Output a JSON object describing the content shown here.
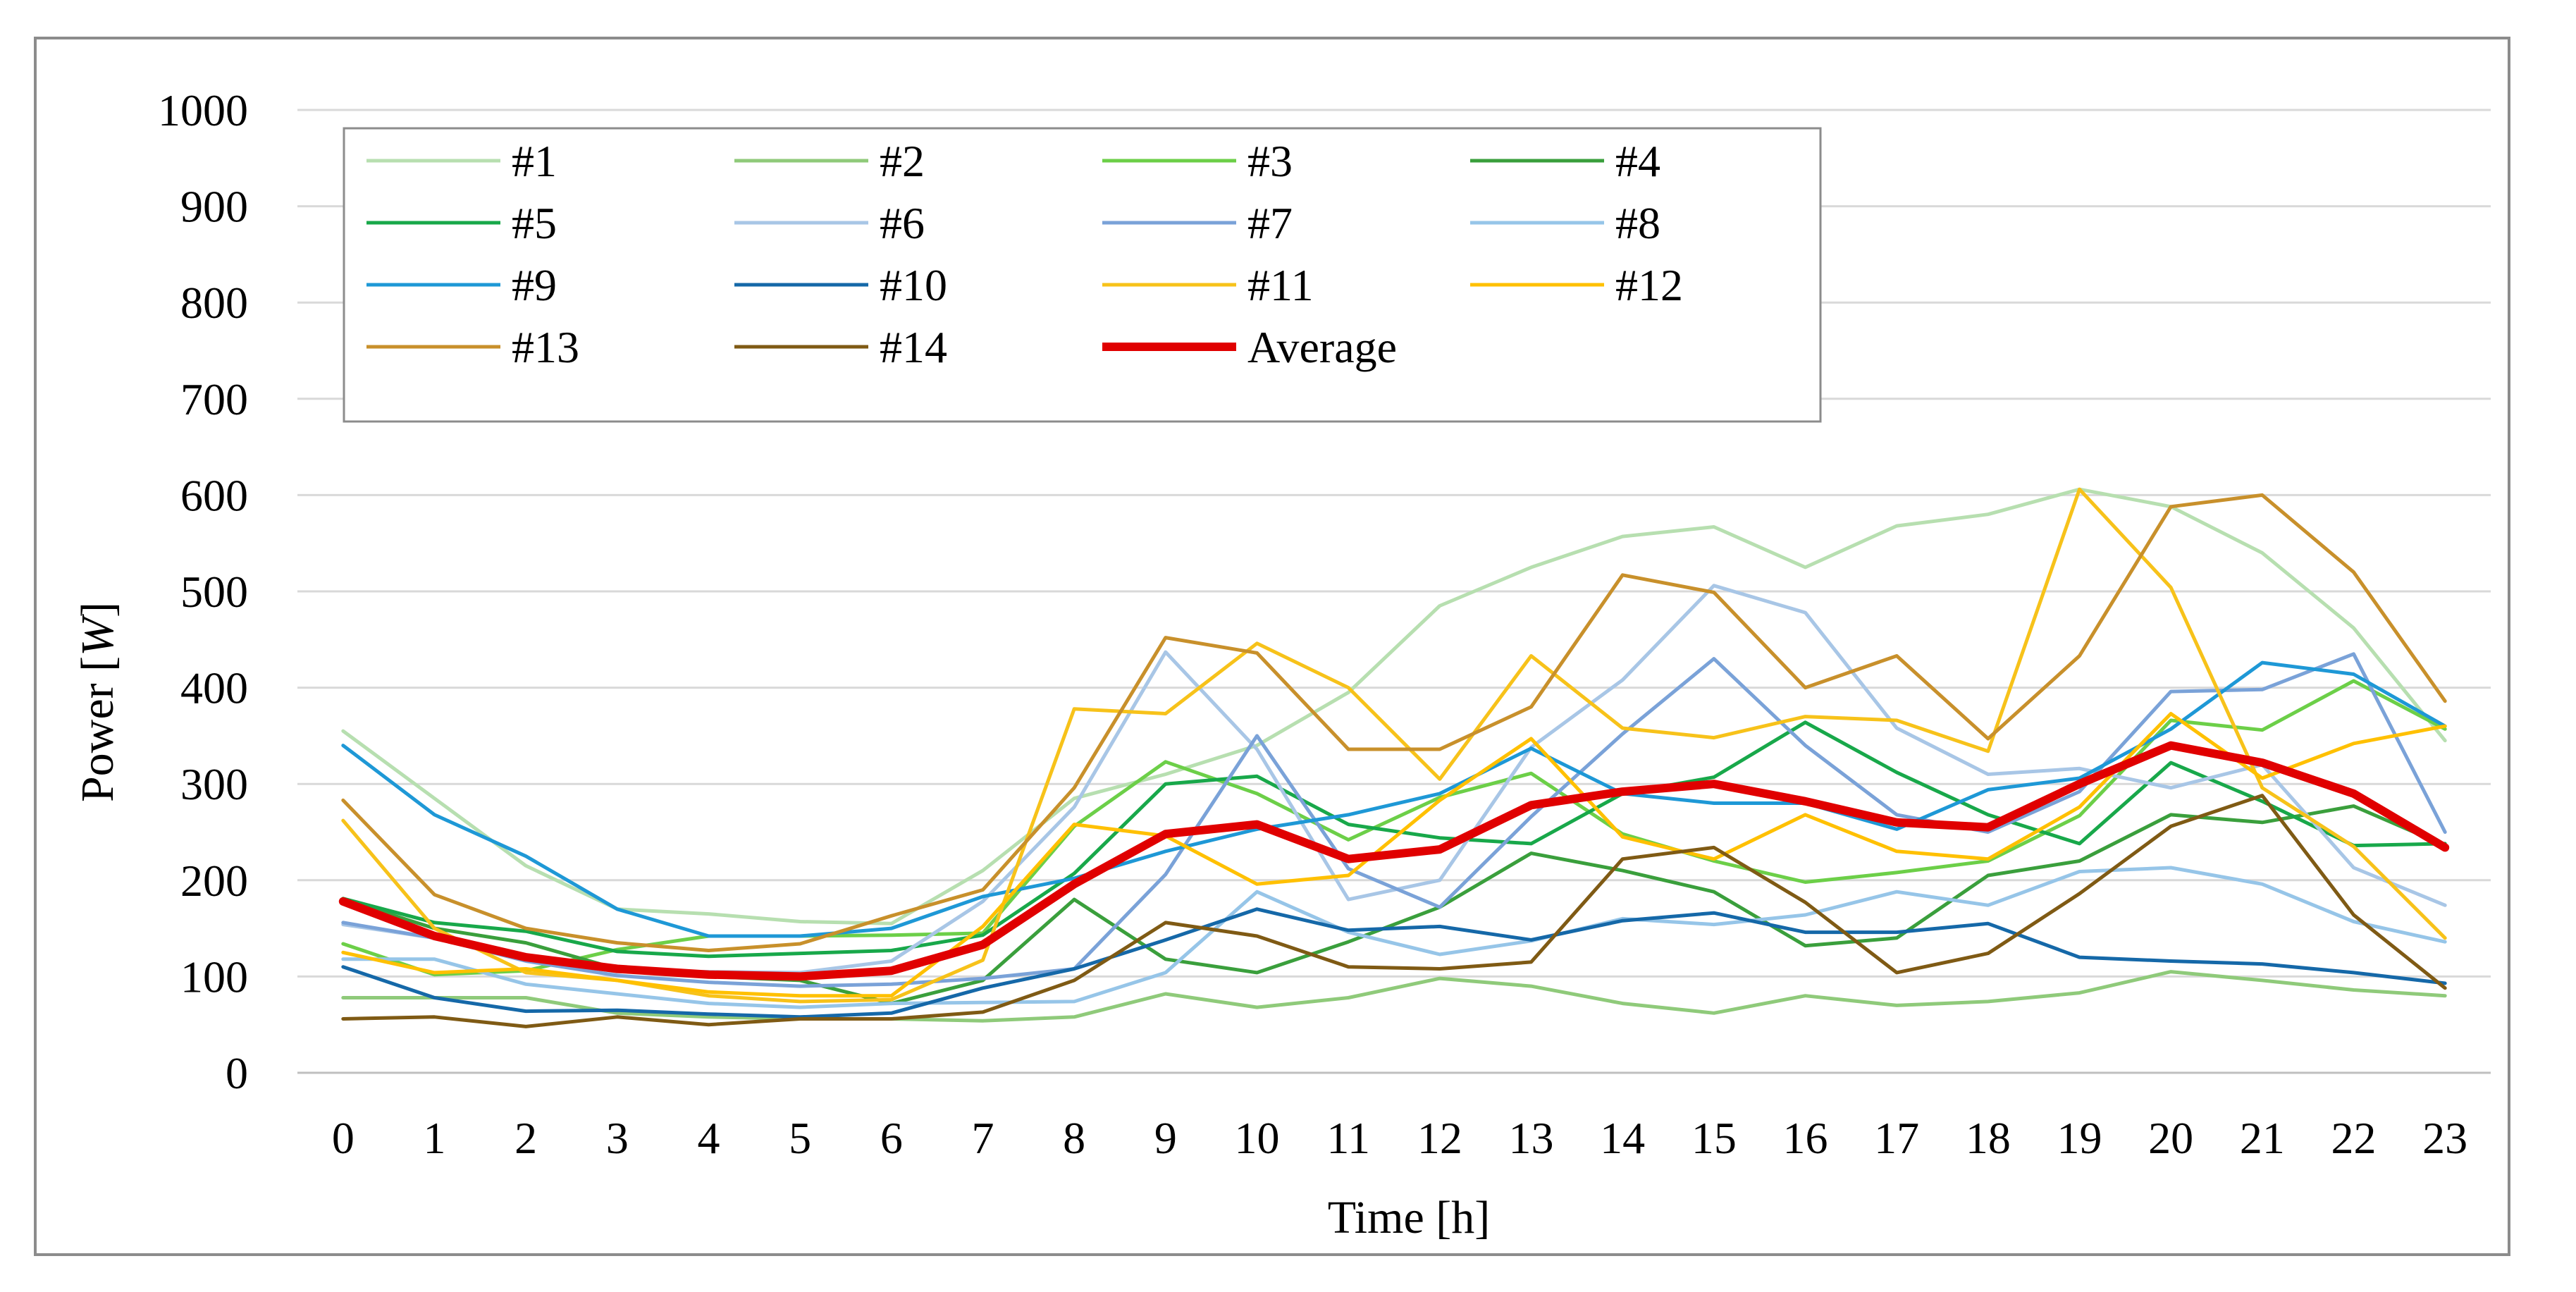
{
  "chart_data": {
    "type": "line",
    "title": "",
    "xlabel": "Time [h]",
    "ylabel_prefix": "Power [",
    "ylabel_unit": "W",
    "ylabel_suffix": "]",
    "ylim": [
      0,
      1000
    ],
    "yticks": [
      0,
      100,
      200,
      300,
      400,
      500,
      600,
      700,
      800,
      900,
      1000
    ],
    "grid": true,
    "legend_position": "top-left",
    "x": [
      0,
      1,
      2,
      3,
      4,
      5,
      6,
      7,
      8,
      9,
      10,
      11,
      12,
      13,
      14,
      15,
      16,
      17,
      18,
      19,
      20,
      21,
      22,
      23
    ],
    "series": [
      {
        "name": "#1",
        "color": "#b7dfb0",
        "width": 5,
        "values": [
          355,
          285,
          215,
          170,
          165,
          157,
          155,
          210,
          285,
          310,
          340,
          395,
          485,
          525,
          557,
          567,
          525,
          568,
          580,
          606,
          588,
          540,
          462,
          345
        ]
      },
      {
        "name": "#2",
        "color": "#8fca7a",
        "width": 5,
        "values": [
          78,
          78,
          78,
          62,
          58,
          56,
          56,
          54,
          58,
          82,
          68,
          78,
          98,
          90,
          72,
          62,
          80,
          70,
          74,
          83,
          105,
          96,
          86,
          80
        ]
      },
      {
        "name": "#3",
        "color": "#6ccf48",
        "width": 5,
        "values": [
          134,
          102,
          106,
          128,
          142,
          142,
          143,
          145,
          256,
          323,
          290,
          242,
          286,
          311,
          248,
          220,
          198,
          208,
          220,
          267,
          366,
          356,
          407,
          357
        ]
      },
      {
        "name": "#4",
        "color": "#3a9f3c",
        "width": 5,
        "values": [
          180,
          150,
          135,
          108,
          100,
          96,
          72,
          96,
          180,
          118,
          104,
          136,
          172,
          228,
          210,
          188,
          132,
          140,
          205,
          220,
          268,
          260,
          277,
          236
        ]
      },
      {
        "name": "#5",
        "color": "#18a84a",
        "width": 5,
        "values": [
          181,
          156,
          147,
          126,
          121,
          124,
          127,
          143,
          207,
          300,
          308,
          258,
          244,
          238,
          290,
          307,
          364,
          312,
          268,
          238,
          322,
          282,
          236,
          238
        ]
      },
      {
        "name": "#6",
        "color": "#a8c6e6",
        "width": 5,
        "values": [
          154,
          140,
          120,
          105,
          105,
          104,
          116,
          178,
          276,
          437,
          336,
          180,
          200,
          338,
          408,
          506,
          478,
          358,
          310,
          316,
          296,
          320,
          213,
          174
        ]
      },
      {
        "name": "#7",
        "color": "#7aa2d8",
        "width": 5,
        "values": [
          156,
          140,
          116,
          101,
          94,
          90,
          92,
          98,
          108,
          206,
          350,
          212,
          172,
          266,
          352,
          430,
          340,
          268,
          250,
          292,
          396,
          398,
          435,
          250
        ]
      },
      {
        "name": "#8",
        "color": "#96c5e8",
        "width": 5,
        "values": [
          118,
          118,
          92,
          82,
          72,
          68,
          72,
          73,
          74,
          104,
          188,
          146,
          123,
          137,
          160,
          154,
          164,
          188,
          174,
          209,
          213,
          196,
          157,
          136
        ]
      },
      {
        "name": "#9",
        "color": "#1e98d6",
        "width": 5,
        "values": [
          340,
          268,
          225,
          170,
          142,
          142,
          150,
          183,
          202,
          230,
          253,
          268,
          290,
          337,
          290,
          280,
          280,
          253,
          294,
          306,
          357,
          426,
          414,
          360
        ]
      },
      {
        "name": "#10",
        "color": "#1568a8",
        "width": 5,
        "values": [
          110,
          78,
          64,
          65,
          61,
          58,
          62,
          88,
          108,
          138,
          170,
          148,
          152,
          138,
          158,
          166,
          146,
          146,
          155,
          120,
          116,
          113,
          104,
          93
        ]
      },
      {
        "name": "#11",
        "color": "#f7c21a",
        "width": 5,
        "values": [
          262,
          150,
          104,
          96,
          80,
          74,
          76,
          117,
          378,
          373,
          446,
          400,
          305,
          433,
          358,
          348,
          370,
          366,
          334,
          606,
          504,
          296,
          235,
          140
        ]
      },
      {
        "name": "#12",
        "color": "#ffc000",
        "width": 5,
        "values": [
          125,
          104,
          108,
          96,
          84,
          80,
          80,
          152,
          258,
          246,
          196,
          205,
          283,
          347,
          245,
          222,
          268,
          230,
          222,
          276,
          373,
          306,
          342,
          360
        ]
      },
      {
        "name": "#13",
        "color": "#c8902b",
        "width": 5,
        "values": [
          283,
          185,
          150,
          135,
          127,
          134,
          163,
          190,
          296,
          452,
          436,
          336,
          336,
          380,
          517,
          499,
          400,
          433,
          347,
          433,
          588,
          600,
          520,
          386
        ]
      },
      {
        "name": "#14",
        "color": "#7f5a14",
        "width": 5,
        "values": [
          56,
          58,
          48,
          58,
          50,
          56,
          56,
          63,
          96,
          156,
          142,
          110,
          108,
          115,
          222,
          234,
          177,
          104,
          124,
          186,
          256,
          288,
          164,
          88
        ]
      },
      {
        "name": "Average",
        "color": "#e00000",
        "width": 12,
        "values": [
          178,
          142,
          120,
          108,
          102,
          100,
          106,
          133,
          196,
          248,
          258,
          222,
          232,
          278,
          292,
          300,
          282,
          260,
          255,
          300,
          340,
          322,
          290,
          234
        ]
      }
    ]
  }
}
